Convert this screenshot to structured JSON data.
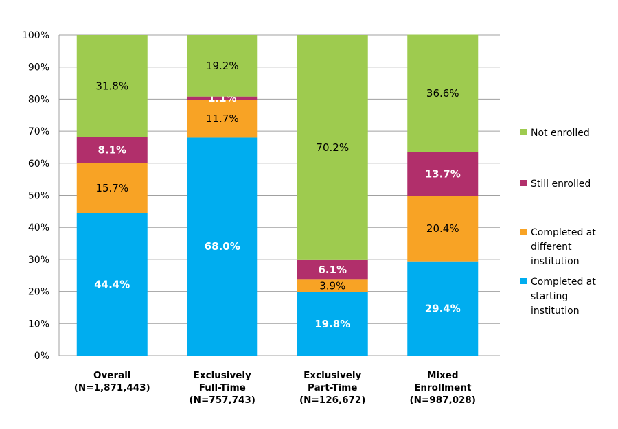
{
  "chart_data": {
    "type": "bar",
    "stacked": true,
    "categories": [
      [
        "Overall",
        "(N=1,871,443)"
      ],
      [
        "Exclusively",
        "Full-Time",
        "(N=757,743)"
      ],
      [
        "Exclusively",
        "Part-Time",
        "(N=126,672)"
      ],
      [
        "Mixed",
        "Enrollment",
        "(N=987,028)"
      ]
    ],
    "series": [
      {
        "name": [
          "Completed at",
          "starting",
          "institution"
        ],
        "color": "#00adef",
        "label_color": "#ffffff",
        "values": [
          44.4,
          68.0,
          19.8,
          29.4
        ]
      },
      {
        "name": [
          "Completed at",
          "different",
          "institution"
        ],
        "color": "#f8a325",
        "label_color": "#000000",
        "values": [
          15.7,
          11.7,
          3.9,
          20.4
        ]
      },
      {
        "name": [
          "Still enrolled"
        ],
        "color": "#b12f6b",
        "label_color": "#ffffff",
        "values": [
          8.1,
          1.1,
          6.1,
          13.7
        ]
      },
      {
        "name": [
          "Not enrolled"
        ],
        "color": "#9ecb4f",
        "label_color": "#000000",
        "values": [
          31.8,
          19.2,
          70.2,
          36.6
        ]
      }
    ],
    "value_format": "{v}%",
    "ylim": [
      0,
      100
    ],
    "yticks": [
      "0%",
      "10%",
      "20%",
      "30%",
      "40%",
      "50%",
      "60%",
      "70%",
      "80%",
      "90%",
      "100%"
    ],
    "grid": true,
    "legend": "right"
  }
}
